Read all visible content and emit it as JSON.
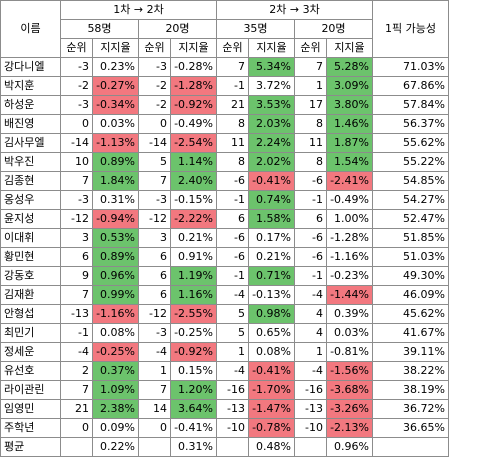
{
  "header": {
    "name_col": "이름",
    "phase1": "1차 → 2차",
    "phase2": "2차 → 3차",
    "groups": [
      "58명",
      "20명",
      "35명",
      "20명"
    ],
    "sub_rank": "순위",
    "sub_support": "지지율",
    "pick_col": "1픽 가능성"
  },
  "rows": [
    {
      "name": "강다니엘",
      "cells": [
        [
          "-3",
          "0.23%",
          ""
        ],
        [
          "-3",
          "-0.28%",
          ""
        ],
        [
          "7",
          "5.34%",
          "green"
        ],
        [
          "7",
          "5.28%",
          "green"
        ]
      ],
      "pick": "71.03%"
    },
    {
      "name": "박지훈",
      "cells": [
        [
          "-2",
          "-0.27%",
          "red"
        ],
        [
          "-2",
          "-1.28%",
          "red"
        ],
        [
          "-1",
          "3.72%",
          ""
        ],
        [
          "1",
          "3.09%",
          "green"
        ]
      ],
      "pick": "67.86%"
    },
    {
      "name": "하성운",
      "cells": [
        [
          "-3",
          "-0.34%",
          "red"
        ],
        [
          "-2",
          "-0.92%",
          "red"
        ],
        [
          "21",
          "3.53%",
          "green"
        ],
        [
          "17",
          "3.80%",
          "green"
        ]
      ],
      "pick": "57.84%"
    },
    {
      "name": "배진영",
      "cells": [
        [
          "0",
          "0.03%",
          ""
        ],
        [
          "0",
          "-0.49%",
          ""
        ],
        [
          "8",
          "2.03%",
          "green"
        ],
        [
          "8",
          "1.46%",
          "green"
        ]
      ],
      "pick": "56.37%"
    },
    {
      "name": "김사무엘",
      "cells": [
        [
          "-14",
          "-1.13%",
          "red"
        ],
        [
          "-14",
          "-2.54%",
          "red"
        ],
        [
          "11",
          "2.24%",
          "green"
        ],
        [
          "11",
          "1.87%",
          "green"
        ]
      ],
      "pick": "55.62%"
    },
    {
      "name": "박우진",
      "cells": [
        [
          "10",
          "0.89%",
          "green"
        ],
        [
          "5",
          "1.14%",
          "green"
        ],
        [
          "8",
          "2.02%",
          "green"
        ],
        [
          "8",
          "1.54%",
          "green"
        ]
      ],
      "pick": "55.22%"
    },
    {
      "name": "김종현",
      "cells": [
        [
          "7",
          "1.84%",
          "green"
        ],
        [
          "7",
          "2.40%",
          "green"
        ],
        [
          "-6",
          "-0.41%",
          "red"
        ],
        [
          "-6",
          "-2.41%",
          "red"
        ]
      ],
      "pick": "54.85%"
    },
    {
      "name": "옹성우",
      "cells": [
        [
          "-3",
          "0.31%",
          ""
        ],
        [
          "-3",
          "-0.15%",
          ""
        ],
        [
          "-1",
          "0.74%",
          "green"
        ],
        [
          "-1",
          "-0.49%",
          ""
        ]
      ],
      "pick": "54.27%"
    },
    {
      "name": "윤지성",
      "cells": [
        [
          "-12",
          "-0.94%",
          "red"
        ],
        [
          "-12",
          "-2.22%",
          "red"
        ],
        [
          "6",
          "1.58%",
          "green"
        ],
        [
          "6",
          "1.00%",
          ""
        ]
      ],
      "pick": "52.47%"
    },
    {
      "name": "이대휘",
      "cells": [
        [
          "3",
          "0.53%",
          "green"
        ],
        [
          "3",
          "0.21%",
          ""
        ],
        [
          "-6",
          "0.17%",
          ""
        ],
        [
          "-6",
          "-1.28%",
          ""
        ]
      ],
      "pick": "51.85%"
    },
    {
      "name": "황민현",
      "cells": [
        [
          "6",
          "0.89%",
          "green"
        ],
        [
          "6",
          "0.91%",
          ""
        ],
        [
          "-6",
          "0.21%",
          ""
        ],
        [
          "-6",
          "-1.16%",
          ""
        ]
      ],
      "pick": "51.03%"
    },
    {
      "name": "강동호",
      "cells": [
        [
          "9",
          "0.96%",
          "green"
        ],
        [
          "6",
          "1.19%",
          "green"
        ],
        [
          "-1",
          "0.71%",
          "green"
        ],
        [
          "-1",
          "-0.23%",
          ""
        ]
      ],
      "pick": "49.30%"
    },
    {
      "name": "김재환",
      "cells": [
        [
          "7",
          "0.99%",
          "green"
        ],
        [
          "6",
          "1.16%",
          "green"
        ],
        [
          "-4",
          "-0.13%",
          ""
        ],
        [
          "-4",
          "-1.44%",
          "red"
        ]
      ],
      "pick": "46.09%"
    },
    {
      "name": "안형섭",
      "cells": [
        [
          "-13",
          "-1.16%",
          "red"
        ],
        [
          "-12",
          "-2.55%",
          "red"
        ],
        [
          "5",
          "0.98%",
          "green"
        ],
        [
          "4",
          "0.39%",
          ""
        ]
      ],
      "pick": "45.62%"
    },
    {
      "name": "최민기",
      "cells": [
        [
          "-1",
          "0.08%",
          ""
        ],
        [
          "-3",
          "-0.25%",
          ""
        ],
        [
          "5",
          "0.65%",
          ""
        ],
        [
          "4",
          "0.03%",
          ""
        ]
      ],
      "pick": "41.67%"
    },
    {
      "name": "정세운",
      "cells": [
        [
          "-4",
          "-0.25%",
          "red"
        ],
        [
          "-4",
          "-0.92%",
          "red"
        ],
        [
          "1",
          "0.08%",
          ""
        ],
        [
          "1",
          "-0.81%",
          ""
        ]
      ],
      "pick": "39.11%"
    },
    {
      "name": "유선호",
      "cells": [
        [
          "2",
          "0.37%",
          "green"
        ],
        [
          "1",
          "0.15%",
          ""
        ],
        [
          "-4",
          "-0.41%",
          "red"
        ],
        [
          "-4",
          "-1.56%",
          "red"
        ]
      ],
      "pick": "38.22%"
    },
    {
      "name": "라이관린",
      "cells": [
        [
          "7",
          "1.09%",
          "green"
        ],
        [
          "7",
          "1.20%",
          "green"
        ],
        [
          "-16",
          "-1.70%",
          "red"
        ],
        [
          "-16",
          "-3.68%",
          "red"
        ]
      ],
      "pick": "38.19%"
    },
    {
      "name": "임영민",
      "cells": [
        [
          "21",
          "2.38%",
          "green"
        ],
        [
          "14",
          "3.64%",
          "green"
        ],
        [
          "-13",
          "-1.47%",
          "red"
        ],
        [
          "-13",
          "-3.26%",
          "red"
        ]
      ],
      "pick": "36.72%"
    },
    {
      "name": "주학년",
      "cells": [
        [
          "0",
          "0.09%",
          ""
        ],
        [
          "0",
          "-0.41%",
          ""
        ],
        [
          "-10",
          "-0.78%",
          "red"
        ],
        [
          "-10",
          "-2.13%",
          "red"
        ]
      ],
      "pick": "36.65%"
    }
  ],
  "average": {
    "label": "평균",
    "values": [
      "0.22%",
      "0.31%",
      "0.48%",
      "0.96%"
    ]
  },
  "colors": {
    "negative": "#f2787f",
    "positive": "#6cc36c",
    "grid": "#8c8c8c"
  }
}
